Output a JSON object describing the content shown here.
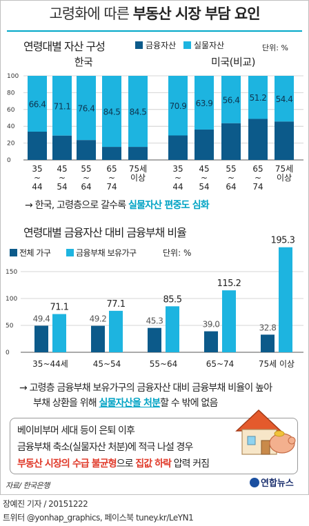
{
  "title": {
    "normal": "고령화에 따른",
    "bold": "부동산 시장 부담 요인"
  },
  "colors": {
    "finance": "#0c5a8a",
    "real": "#1db4e0",
    "accent": "#00a7c8",
    "red": "#e03a2a"
  },
  "chart_data": [
    {
      "type": "bar",
      "title": "연령대별 자산 구성",
      "unit": "단위: %",
      "legend": [
        "금융자산",
        "실물자산"
      ],
      "stacked": true,
      "ylim": [
        0,
        100
      ],
      "yticks": [
        "0",
        "20",
        "40",
        "60",
        "80",
        "100"
      ],
      "panels": [
        {
          "name": "한국",
          "categories": [
            [
              "35",
              "~",
              "44"
            ],
            [
              "45",
              "~",
              "54"
            ],
            [
              "55",
              "~",
              "64"
            ],
            [
              "65",
              "~",
              "74"
            ],
            [
              "75세",
              "이상"
            ]
          ],
          "finance": [
            33.6,
            28.9,
            23.6,
            15.5,
            15.5
          ],
          "real": [
            66.4,
            71.1,
            76.4,
            84.5,
            84.5
          ],
          "labels": [
            "66.4",
            "71.1",
            "76.4",
            "84.5",
            "84.5"
          ]
        },
        {
          "name": "미국(비교)",
          "categories": [
            [
              "35",
              "~",
              "44"
            ],
            [
              "45",
              "~",
              "54"
            ],
            [
              "55",
              "~",
              "64"
            ],
            [
              "65",
              "~",
              "74"
            ],
            [
              "75세",
              "이상"
            ]
          ],
          "finance": [
            29.1,
            36.1,
            43.6,
            48.8,
            45.6
          ],
          "real": [
            70.9,
            63.9,
            56.4,
            51.2,
            54.4
          ],
          "labels": [
            "70.9",
            "63.9",
            "56.4",
            "51.2",
            "54.4"
          ]
        }
      ]
    },
    {
      "type": "bar",
      "title": "연령대별 금융자산 대비 금융부채 비율",
      "unit": "단위: %",
      "legend": [
        "전체 가구",
        "금융부채 보유가구"
      ],
      "ylim": [
        0,
        200
      ],
      "yticks": [
        "0",
        "50",
        "100",
        "150"
      ],
      "categories": [
        "35~44세",
        "45~54",
        "55~64",
        "65~74",
        "75세 이상"
      ],
      "series": [
        {
          "name": "전체 가구",
          "values": [
            49.4,
            49.2,
            45.3,
            39.0,
            32.8
          ],
          "labels": [
            "49.4",
            "49.2",
            "45.3",
            "39.0",
            "32.8"
          ]
        },
        {
          "name": "금융부채 보유가구",
          "values": [
            71.1,
            77.1,
            85.5,
            115.2,
            195.3
          ],
          "labels": [
            "71.1",
            "77.1",
            "85.5",
            "115.2",
            "195.3"
          ]
        }
      ]
    }
  ],
  "note1": {
    "prefix": "→ 한국, 고령층으로 갈수록 ",
    "highlight": "실물자산 편중도 심화"
  },
  "note2": {
    "line1": "→ 고령층 금융부채 보유가구의 금융자산 대비 금융부채 비율이 높아",
    "line2_pre": "부채 상환을 위해 ",
    "line2_hl": "실물자산을 처분",
    "line2_post": "할 수 밖에 없음"
  },
  "box": {
    "line1": "베이비부머 세대 등이 은퇴 이후",
    "line2": "금융부채 축소(실물자산 처분)에 적극 나설 경우",
    "line3_red1": "부동산 시장의 수급 불균형",
    "line3_mid": "으로 ",
    "line3_red2": "집값 하락",
    "line3_post": " 압력 커짐"
  },
  "source": "자료/ 한국은행",
  "logo": "연합뉴스",
  "credit1": "장예진 기자 / 20151222",
  "credit2": "트위터 @yonhap_graphics, 페이스북 tuney.kr/LeYN1"
}
